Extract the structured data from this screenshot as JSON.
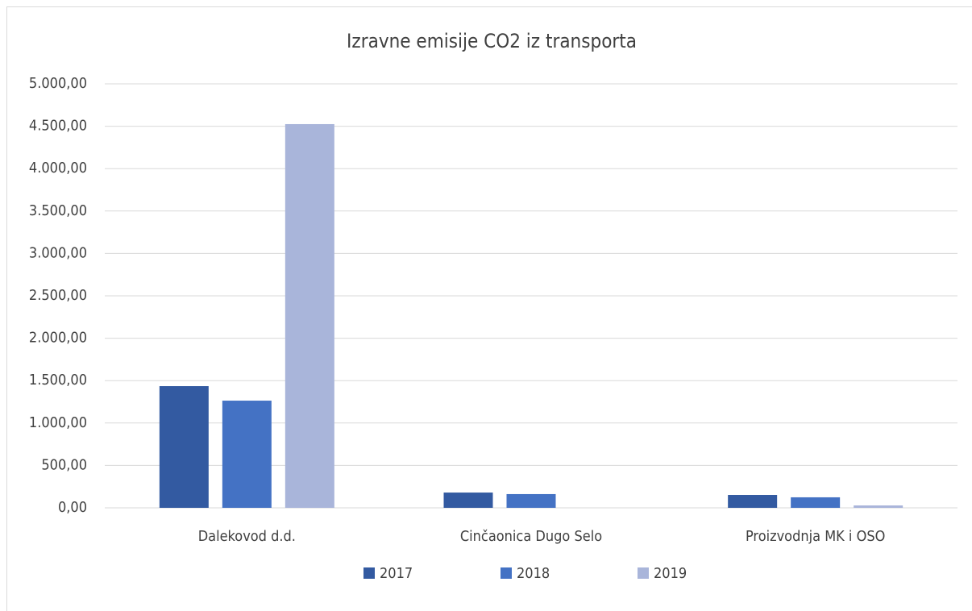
{
  "chart_data": {
    "type": "bar",
    "title": "Izravne  emisije CO2 iz transporta",
    "categories": [
      "Dalekovod d.d.",
      "Cinčaonica Dugo Selo",
      "Proizvodnja MK i OSO"
    ],
    "series": [
      {
        "name": "2017",
        "color": "#335aa1",
        "values": [
          1435,
          180,
          152
        ]
      },
      {
        "name": "2018",
        "color": "#4472c4",
        "values": [
          1264,
          162,
          124
        ]
      },
      {
        "name": "2019",
        "color": "#a9b5da",
        "values": [
          4525,
          0,
          28
        ]
      }
    ],
    "ylim": [
      0,
      5000
    ],
    "yticks": [
      {
        "value": 0,
        "label": "0,00"
      },
      {
        "value": 500,
        "label": "500,00"
      },
      {
        "value": 1000,
        "label": "1.000,00"
      },
      {
        "value": 1500,
        "label": "1.500,00"
      },
      {
        "value": 2000,
        "label": "2.000,00"
      },
      {
        "value": 2500,
        "label": "2.500,00"
      },
      {
        "value": 3000,
        "label": "3.000,00"
      },
      {
        "value": 3500,
        "label": "3.500,00"
      },
      {
        "value": 4000,
        "label": "4.000,00"
      },
      {
        "value": 4500,
        "label": "4.500,00"
      },
      {
        "value": 5000,
        "label": "5.000,00"
      }
    ],
    "grid": true,
    "legend": "bottom"
  }
}
